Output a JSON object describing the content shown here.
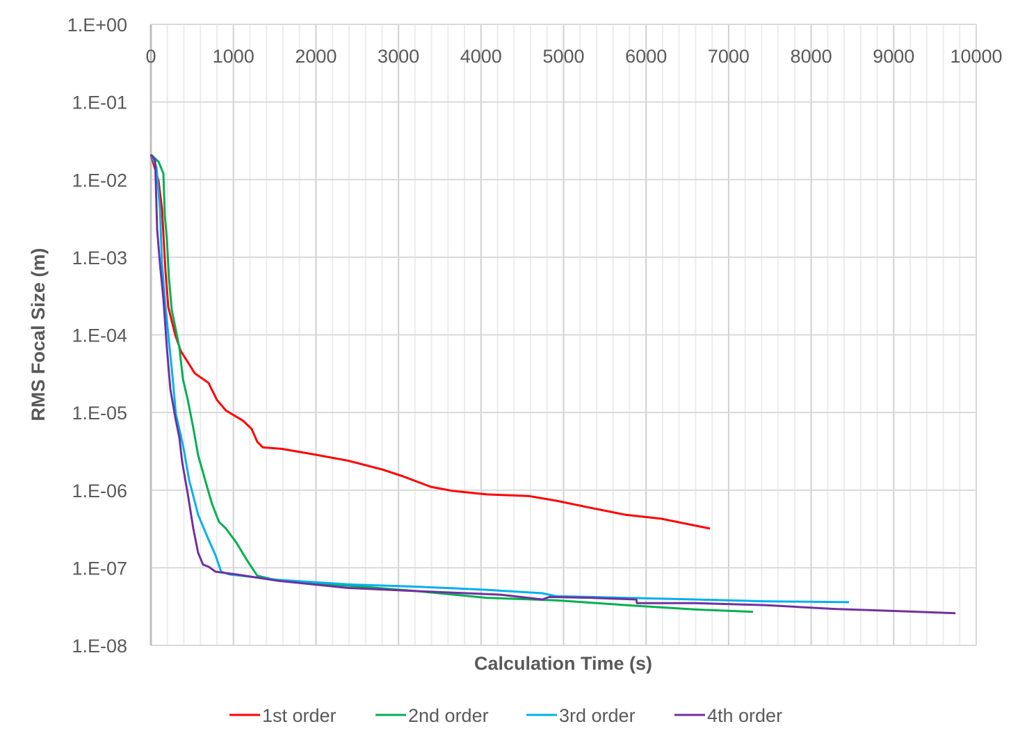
{
  "chart_data": {
    "type": "line",
    "title": "",
    "xlabel": "Calculation Time (s)",
    "ylabel": "RMS Focal Size (m)",
    "xlim": [
      0,
      10000
    ],
    "ylim": [
      1e-08,
      1
    ],
    "yscale": "log",
    "grid": true,
    "legend_position": "bottom",
    "x_ticks": [
      "0",
      "1000",
      "2000",
      "3000",
      "4000",
      "5000",
      "6000",
      "7000",
      "8000",
      "9000",
      "10000"
    ],
    "y_ticks": [
      "1.E+00",
      "1.E-01",
      "1.E-02",
      "1.E-03",
      "1.E-04",
      "1.E-05",
      "1.E-06",
      "1.E-07",
      "1.E-08"
    ],
    "series": [
      {
        "name": "1st order",
        "color": "#ff0000",
        "points": [
          [
            0,
            0.021
          ],
          [
            93,
            0.0096
          ],
          [
            135,
            0.0042
          ],
          [
            177,
            0.00066
          ],
          [
            211,
            0.00023
          ],
          [
            295,
            0.0001
          ],
          [
            362,
            6.2e-05
          ],
          [
            489,
            3.8e-05
          ],
          [
            531,
            3.2e-05
          ],
          [
            699,
            2.4e-05
          ],
          [
            800,
            1.45e-05
          ],
          [
            910,
            1.06e-05
          ],
          [
            1120,
            7.8e-06
          ],
          [
            1222,
            6.1e-06
          ],
          [
            1289,
            4.2e-06
          ],
          [
            1356,
            3.55e-06
          ],
          [
            1584,
            3.4e-06
          ],
          [
            1963,
            2.9e-06
          ],
          [
            2384,
            2.4e-06
          ],
          [
            2806,
            1.84e-06
          ],
          [
            3058,
            1.5e-06
          ],
          [
            3395,
            1.1e-06
          ],
          [
            3648,
            9.8e-07
          ],
          [
            4069,
            8.8e-07
          ],
          [
            4575,
            8.4e-07
          ],
          [
            4912,
            7.3e-07
          ],
          [
            5333,
            5.9e-07
          ],
          [
            5754,
            4.8e-07
          ],
          [
            6175,
            4.3e-07
          ],
          [
            6774,
            3.2e-07
          ]
        ]
      },
      {
        "name": "2nd order",
        "color": "#00b050",
        "points": [
          [
            0,
            0.021
          ],
          [
            93,
            0.017
          ],
          [
            152,
            0.012
          ],
          [
            169,
            0.0034
          ],
          [
            194,
            0.0017
          ],
          [
            219,
            0.00054
          ],
          [
            253,
            0.00021
          ],
          [
            303,
            0.000115
          ],
          [
            345,
            6.8e-05
          ],
          [
            388,
            2.7e-05
          ],
          [
            447,
            1.45e-05
          ],
          [
            514,
            6.3e-06
          ],
          [
            573,
            2.8e-06
          ],
          [
            657,
            1.35e-06
          ],
          [
            741,
            6.6e-07
          ],
          [
            826,
            3.9e-07
          ],
          [
            910,
            3.2e-07
          ],
          [
            1036,
            2.1e-07
          ],
          [
            1163,
            1.26e-07
          ],
          [
            1289,
            7.9e-08
          ],
          [
            1542,
            6.8e-08
          ],
          [
            2384,
            5.9e-08
          ],
          [
            3227,
            5e-08
          ],
          [
            4069,
            4.1e-08
          ],
          [
            4912,
            3.8e-08
          ],
          [
            5754,
            3.3e-08
          ],
          [
            6597,
            2.9e-08
          ],
          [
            7296,
            2.7e-08
          ]
        ]
      },
      {
        "name": "3rd order",
        "color": "#00b0f0",
        "points": [
          [
            0,
            0.021
          ],
          [
            67,
            0.0145
          ],
          [
            110,
            0.0042
          ],
          [
            135,
            0.00081
          ],
          [
            177,
            0.00023
          ],
          [
            219,
            8.3e-05
          ],
          [
            261,
            3e-05
          ],
          [
            303,
            9.5e-06
          ],
          [
            362,
            5.1e-06
          ],
          [
            404,
            3.1e-06
          ],
          [
            463,
            1.35e-06
          ],
          [
            573,
            4.8e-07
          ],
          [
            699,
            2.3e-07
          ],
          [
            783,
            1.45e-07
          ],
          [
            851,
            8.9e-08
          ],
          [
            952,
            8.2e-08
          ],
          [
            1542,
            7e-08
          ],
          [
            2384,
            6.1e-08
          ],
          [
            3227,
            5.7e-08
          ],
          [
            4069,
            5.2e-08
          ],
          [
            4743,
            4.7e-08
          ],
          [
            4912,
            4.3e-08
          ],
          [
            5754,
            4.1e-08
          ],
          [
            6597,
            3.9e-08
          ],
          [
            7439,
            3.7e-08
          ],
          [
            8459,
            3.6e-08
          ]
        ]
      },
      {
        "name": "4th order",
        "color": "#7030a0",
        "points": [
          [
            0,
            0.021
          ],
          [
            51,
            0.018
          ],
          [
            76,
            0.0023
          ],
          [
            110,
            0.00081
          ],
          [
            152,
            0.00029
          ],
          [
            194,
            6.8e-05
          ],
          [
            236,
            2e-05
          ],
          [
            295,
            8.7e-06
          ],
          [
            345,
            4.7e-06
          ],
          [
            379,
            2.3e-06
          ],
          [
            447,
            8.9e-07
          ],
          [
            514,
            3.2e-07
          ],
          [
            573,
            1.55e-07
          ],
          [
            632,
            1.1e-07
          ],
          [
            699,
            1.03e-07
          ],
          [
            783,
            8.9e-08
          ],
          [
            1036,
            8.2e-08
          ],
          [
            1542,
            6.8e-08
          ],
          [
            2384,
            5.5e-08
          ],
          [
            3227,
            5e-08
          ],
          [
            4238,
            4.5e-08
          ],
          [
            4743,
            3.9e-08
          ],
          [
            4827,
            4.2e-08
          ],
          [
            5333,
            4.1e-08
          ],
          [
            5881,
            3.9e-08
          ],
          [
            5889,
            3.5e-08
          ],
          [
            6597,
            3.5e-08
          ],
          [
            7439,
            3.3e-08
          ],
          [
            8282,
            2.95e-08
          ],
          [
            9124,
            2.75e-08
          ],
          [
            9748,
            2.6e-08
          ]
        ]
      }
    ]
  }
}
